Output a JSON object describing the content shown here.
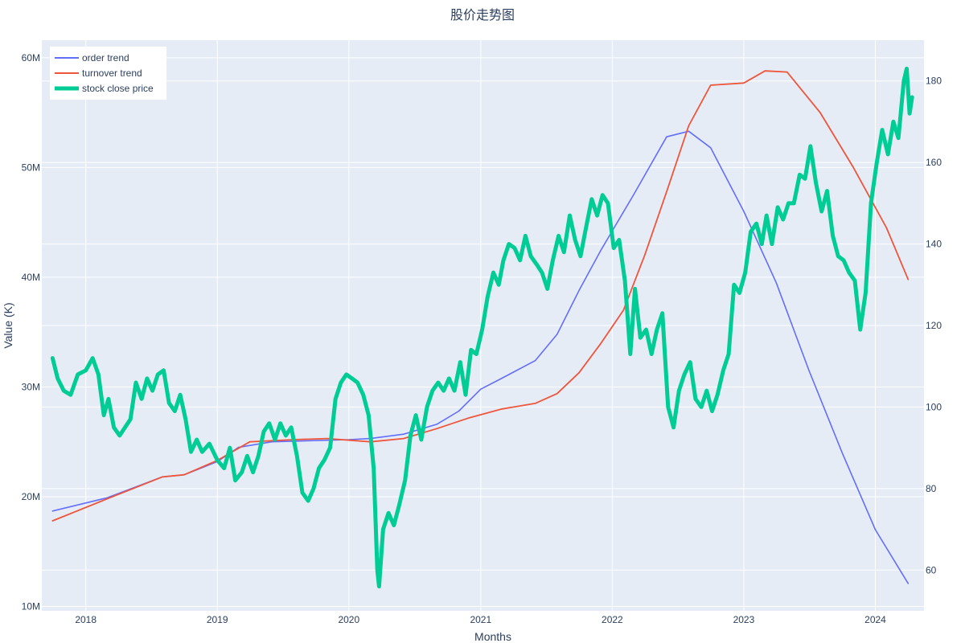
{
  "chart_data": {
    "type": "line",
    "title": "股价走势图",
    "xlabel": "Months",
    "ylabel": "Value (K)",
    "y2label": "",
    "colors": {
      "plot_background": "#e5ecf6",
      "grid": "#ffffff",
      "order_trend": "#636efa",
      "turnover_trend": "#ef553b",
      "stock_close_price": "#00cc96"
    },
    "x_tick_labels": [
      "2018",
      "2019",
      "2020",
      "2021",
      "2022",
      "2023",
      "2024"
    ],
    "x_range": [
      "2017-09-01",
      "2024-05-15"
    ],
    "y_left_ticks": [
      10000000,
      20000000,
      30000000,
      40000000,
      50000000,
      60000000
    ],
    "y_left_tick_labels": [
      "10M",
      "20M",
      "30M",
      "40M",
      "50M",
      "60M"
    ],
    "y_left_range": [
      9600000,
      61600000
    ],
    "y_right_ticks": [
      60,
      80,
      100,
      120,
      140,
      160,
      180
    ],
    "y_right_tick_labels": [
      "60",
      "80",
      "100",
      "120",
      "140",
      "160",
      "180"
    ],
    "y_right_range": [
      50,
      190
    ],
    "legend": {
      "position": "top-left"
    },
    "grid": true,
    "series": [
      {
        "name": "order trend",
        "axis": "left",
        "width": 1.6,
        "points": [
          [
            "2017-10-01",
            18700000
          ],
          [
            "2018-03-01",
            19900000
          ],
          [
            "2018-08-01",
            21800000
          ],
          [
            "2018-10-01",
            22000000
          ],
          [
            "2019-01-01",
            23200000
          ],
          [
            "2019-03-01",
            24500000
          ],
          [
            "2019-06-01",
            25000000
          ],
          [
            "2020-01-01",
            25200000
          ],
          [
            "2020-03-01",
            25300000
          ],
          [
            "2020-06-01",
            25700000
          ],
          [
            "2020-09-01",
            26600000
          ],
          [
            "2020-11-01",
            27800000
          ],
          [
            "2021-01-01",
            29800000
          ],
          [
            "2021-03-01",
            30800000
          ],
          [
            "2021-06-01",
            32400000
          ],
          [
            "2021-08-01",
            34800000
          ],
          [
            "2021-10-01",
            38800000
          ],
          [
            "2021-12-01",
            42500000
          ],
          [
            "2022-03-01",
            47500000
          ],
          [
            "2022-06-01",
            52800000
          ],
          [
            "2022-08-01",
            53300000
          ],
          [
            "2022-10-01",
            51800000
          ],
          [
            "2023-01-01",
            46000000
          ],
          [
            "2023-04-01",
            39500000
          ],
          [
            "2023-07-01",
            31500000
          ],
          [
            "2023-10-01",
            24000000
          ],
          [
            "2024-01-01",
            17000000
          ],
          [
            "2024-04-01",
            12100000
          ]
        ]
      },
      {
        "name": "turnover trend",
        "axis": "left",
        "width": 1.8,
        "points": [
          [
            "2017-10-01",
            17800000
          ],
          [
            "2018-03-01",
            19800000
          ],
          [
            "2018-08-01",
            21800000
          ],
          [
            "2018-10-01",
            22000000
          ],
          [
            "2019-01-01",
            23300000
          ],
          [
            "2019-04-01",
            25000000
          ],
          [
            "2019-08-01",
            25200000
          ],
          [
            "2019-11-01",
            25300000
          ],
          [
            "2020-03-01",
            25000000
          ],
          [
            "2020-06-01",
            25300000
          ],
          [
            "2020-09-01",
            26200000
          ],
          [
            "2020-12-01",
            27200000
          ],
          [
            "2021-03-01",
            28000000
          ],
          [
            "2021-06-01",
            28500000
          ],
          [
            "2021-08-01",
            29400000
          ],
          [
            "2021-10-01",
            31300000
          ],
          [
            "2021-12-01",
            34000000
          ],
          [
            "2022-02-01",
            37000000
          ],
          [
            "2022-04-01",
            42000000
          ],
          [
            "2022-06-01",
            47800000
          ],
          [
            "2022-08-01",
            53800000
          ],
          [
            "2022-10-01",
            57500000
          ],
          [
            "2023-01-01",
            57700000
          ],
          [
            "2023-03-01",
            58800000
          ],
          [
            "2023-05-01",
            58700000
          ],
          [
            "2023-08-01",
            55000000
          ],
          [
            "2023-11-01",
            50000000
          ],
          [
            "2024-02-01",
            44500000
          ],
          [
            "2024-04-01",
            39800000
          ]
        ]
      },
      {
        "name": "stock close price",
        "axis": "right",
        "width": 5,
        "points": [
          [
            "2017-10-01",
            112
          ],
          [
            "2017-10-15",
            107
          ],
          [
            "2017-11-01",
            104
          ],
          [
            "2017-11-20",
            103
          ],
          [
            "2017-12-10",
            108
          ],
          [
            "2018-01-01",
            109
          ],
          [
            "2018-01-20",
            112
          ],
          [
            "2018-02-05",
            108
          ],
          [
            "2018-02-20",
            98
          ],
          [
            "2018-03-05",
            102
          ],
          [
            "2018-03-20",
            95
          ],
          [
            "2018-04-05",
            93
          ],
          [
            "2018-04-20",
            95
          ],
          [
            "2018-05-05",
            97
          ],
          [
            "2018-05-20",
            106
          ],
          [
            "2018-06-05",
            102
          ],
          [
            "2018-06-20",
            107
          ],
          [
            "2018-07-05",
            104
          ],
          [
            "2018-07-20",
            108
          ],
          [
            "2018-08-05",
            109
          ],
          [
            "2018-08-20",
            101
          ],
          [
            "2018-09-05",
            99
          ],
          [
            "2018-09-20",
            103
          ],
          [
            "2018-10-05",
            97
          ],
          [
            "2018-10-20",
            89
          ],
          [
            "2018-11-05",
            92
          ],
          [
            "2018-11-20",
            89
          ],
          [
            "2018-12-10",
            91
          ],
          [
            "2019-01-01",
            87
          ],
          [
            "2019-01-20",
            85
          ],
          [
            "2019-02-05",
            90
          ],
          [
            "2019-02-20",
            82
          ],
          [
            "2019-03-10",
            84
          ],
          [
            "2019-03-25",
            88
          ],
          [
            "2019-04-10",
            84
          ],
          [
            "2019-04-25",
            88
          ],
          [
            "2019-05-10",
            94
          ],
          [
            "2019-05-25",
            96
          ],
          [
            "2019-06-10",
            92
          ],
          [
            "2019-06-25",
            96
          ],
          [
            "2019-07-10",
            93
          ],
          [
            "2019-07-25",
            95
          ],
          [
            "2019-08-10",
            88
          ],
          [
            "2019-08-25",
            79
          ],
          [
            "2019-09-10",
            77
          ],
          [
            "2019-09-25",
            80
          ],
          [
            "2019-10-10",
            85
          ],
          [
            "2019-10-25",
            87
          ],
          [
            "2019-11-10",
            90
          ],
          [
            "2019-11-25",
            102
          ],
          [
            "2019-12-10",
            106
          ],
          [
            "2019-12-25",
            108
          ],
          [
            "2020-01-10",
            107
          ],
          [
            "2020-01-25",
            106
          ],
          [
            "2020-02-10",
            103
          ],
          [
            "2020-02-25",
            98
          ],
          [
            "2020-03-10",
            85
          ],
          [
            "2020-03-20",
            60
          ],
          [
            "2020-03-25",
            56
          ],
          [
            "2020-04-05",
            70
          ],
          [
            "2020-04-20",
            74
          ],
          [
            "2020-05-05",
            71
          ],
          [
            "2020-05-20",
            76
          ],
          [
            "2020-06-05",
            82
          ],
          [
            "2020-06-20",
            93
          ],
          [
            "2020-07-05",
            98
          ],
          [
            "2020-07-20",
            92
          ],
          [
            "2020-08-05",
            100
          ],
          [
            "2020-08-20",
            104
          ],
          [
            "2020-09-05",
            106
          ],
          [
            "2020-09-20",
            104
          ],
          [
            "2020-10-05",
            107
          ],
          [
            "2020-10-20",
            104
          ],
          [
            "2020-11-05",
            111
          ],
          [
            "2020-11-20",
            103
          ],
          [
            "2020-12-05",
            114
          ],
          [
            "2020-12-20",
            113
          ],
          [
            "2021-01-05",
            119
          ],
          [
            "2021-01-20",
            127
          ],
          [
            "2021-02-05",
            133
          ],
          [
            "2021-02-20",
            130
          ],
          [
            "2021-03-05",
            136
          ],
          [
            "2021-03-20",
            140
          ],
          [
            "2021-04-05",
            139
          ],
          [
            "2021-04-20",
            136
          ],
          [
            "2021-05-05",
            142
          ],
          [
            "2021-05-20",
            137
          ],
          [
            "2021-06-05",
            135
          ],
          [
            "2021-06-20",
            133
          ],
          [
            "2021-07-05",
            129
          ],
          [
            "2021-07-20",
            136
          ],
          [
            "2021-08-05",
            142
          ],
          [
            "2021-08-20",
            138
          ],
          [
            "2021-09-05",
            147
          ],
          [
            "2021-09-20",
            141
          ],
          [
            "2021-10-05",
            137
          ],
          [
            "2021-10-20",
            144
          ],
          [
            "2021-11-05",
            151
          ],
          [
            "2021-11-20",
            147
          ],
          [
            "2021-12-05",
            152
          ],
          [
            "2021-12-20",
            150
          ],
          [
            "2022-01-05",
            139
          ],
          [
            "2022-01-20",
            141
          ],
          [
            "2022-02-05",
            131
          ],
          [
            "2022-02-20",
            113
          ],
          [
            "2022-03-05",
            129
          ],
          [
            "2022-03-20",
            117
          ],
          [
            "2022-04-05",
            119
          ],
          [
            "2022-04-20",
            113
          ],
          [
            "2022-05-05",
            119
          ],
          [
            "2022-05-20",
            123
          ],
          [
            "2022-06-05",
            100
          ],
          [
            "2022-06-20",
            95
          ],
          [
            "2022-07-05",
            104
          ],
          [
            "2022-07-20",
            108
          ],
          [
            "2022-08-05",
            111
          ],
          [
            "2022-08-20",
            102
          ],
          [
            "2022-09-05",
            100
          ],
          [
            "2022-09-20",
            104
          ],
          [
            "2022-10-05",
            99
          ],
          [
            "2022-10-20",
            103
          ],
          [
            "2022-11-05",
            109
          ],
          [
            "2022-11-20",
            113
          ],
          [
            "2022-12-05",
            130
          ],
          [
            "2022-12-20",
            128
          ],
          [
            "2023-01-05",
            133
          ],
          [
            "2023-01-20",
            143
          ],
          [
            "2023-02-05",
            145
          ],
          [
            "2023-02-20",
            140
          ],
          [
            "2023-03-05",
            147
          ],
          [
            "2023-03-20",
            140
          ],
          [
            "2023-04-05",
            149
          ],
          [
            "2023-04-20",
            146
          ],
          [
            "2023-05-05",
            150
          ],
          [
            "2023-05-20",
            150
          ],
          [
            "2023-06-05",
            157
          ],
          [
            "2023-06-20",
            156
          ],
          [
            "2023-07-05",
            164
          ],
          [
            "2023-07-20",
            155
          ],
          [
            "2023-08-05",
            148
          ],
          [
            "2023-08-20",
            153
          ],
          [
            "2023-09-05",
            142
          ],
          [
            "2023-09-20",
            137
          ],
          [
            "2023-10-05",
            136
          ],
          [
            "2023-10-20",
            133
          ],
          [
            "2023-11-05",
            131
          ],
          [
            "2023-11-20",
            119
          ],
          [
            "2023-12-05",
            128
          ],
          [
            "2023-12-20",
            150
          ],
          [
            "2024-01-05",
            160
          ],
          [
            "2024-01-20",
            168
          ],
          [
            "2024-02-05",
            162
          ],
          [
            "2024-02-20",
            170
          ],
          [
            "2024-03-05",
            166
          ],
          [
            "2024-03-20",
            180
          ],
          [
            "2024-03-28",
            183
          ],
          [
            "2024-04-05",
            172
          ],
          [
            "2024-04-12",
            176
          ]
        ]
      }
    ]
  }
}
